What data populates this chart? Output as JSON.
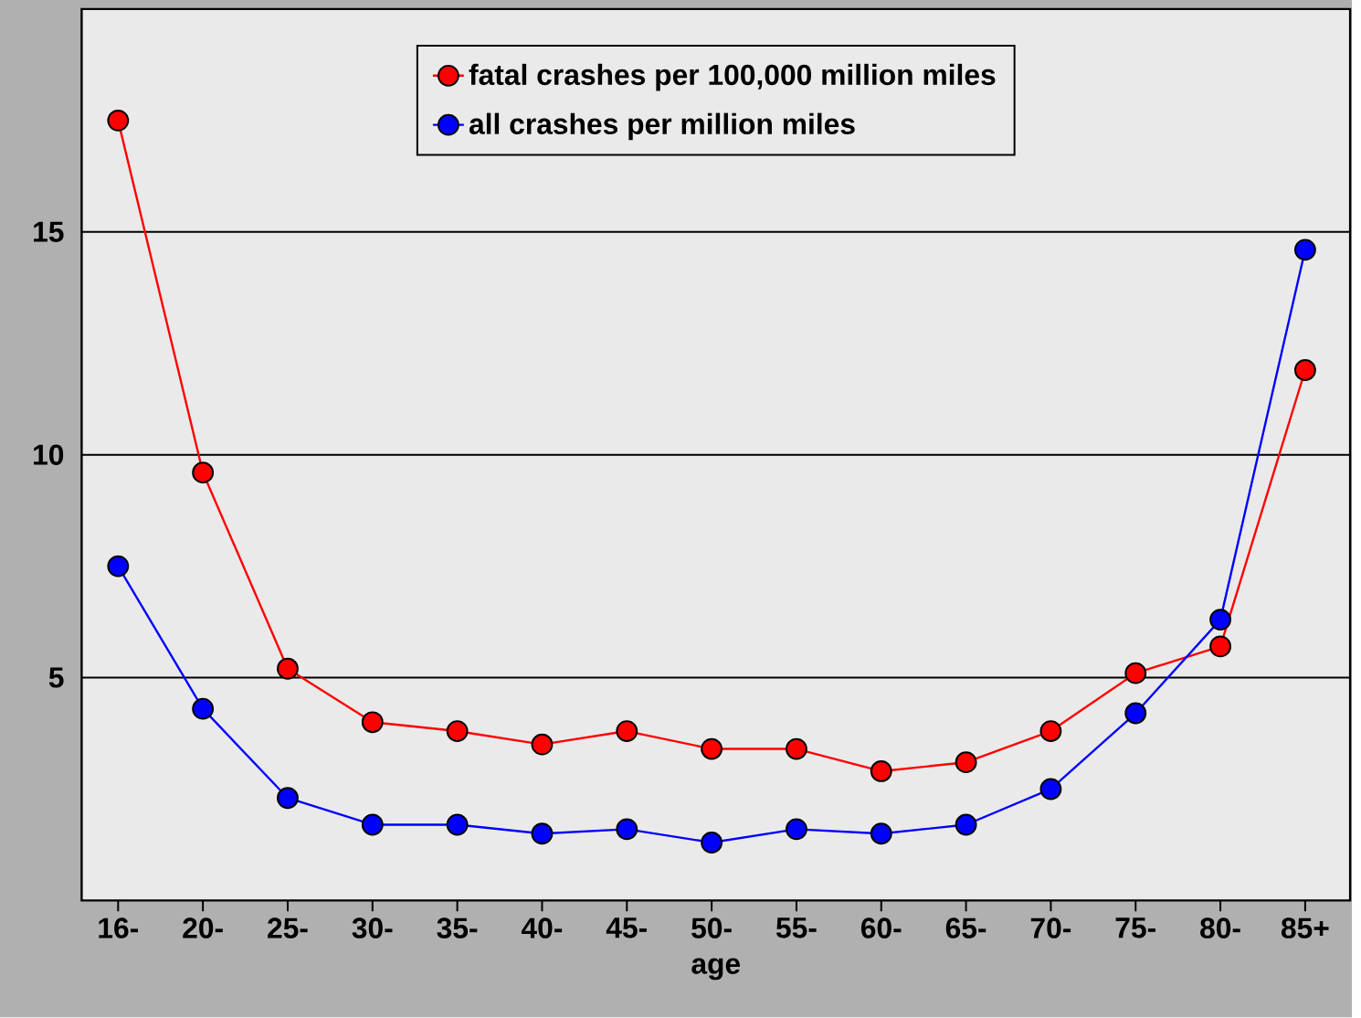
{
  "chart_data": {
    "type": "line",
    "xlabel": "age",
    "categories": [
      "16-",
      "20-",
      "25-",
      "30-",
      "35-",
      "40-",
      "45-",
      "50-",
      "55-",
      "60-",
      "65-",
      "70-",
      "75-",
      "80-",
      "85+"
    ],
    "series": [
      {
        "name": "fatal crashes per 100,000 million miles",
        "color": "#ff0000",
        "values": [
          17.5,
          9.6,
          5.2,
          4.0,
          3.8,
          3.5,
          3.8,
          3.4,
          3.4,
          2.9,
          3.1,
          3.8,
          5.1,
          5.7,
          11.9
        ]
      },
      {
        "name": "all crashes per million miles",
        "color": "#0000ff",
        "values": [
          7.5,
          4.3,
          2.3,
          1.7,
          1.7,
          1.5,
          1.6,
          1.3,
          1.6,
          1.5,
          1.7,
          2.5,
          4.2,
          6.3,
          14.6
        ]
      }
    ],
    "ylim": [
      0,
      20
    ],
    "yticks": [
      5,
      10,
      15
    ],
    "grid": "y",
    "legend": "top",
    "marker": "circle",
    "line_style": "solid"
  }
}
